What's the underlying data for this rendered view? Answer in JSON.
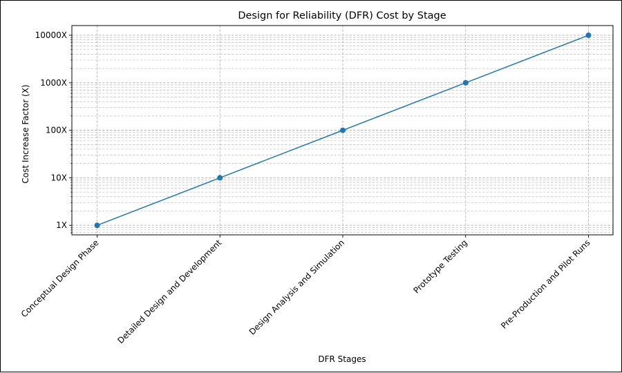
{
  "chart_data": {
    "type": "line",
    "title": "Design for Reliability (DFR) Cost by Stage",
    "xlabel": "DFR Stages",
    "ylabel": "Cost Increase Factor (X)",
    "categories": [
      "Conceptual Design Phase",
      "Detailed Design and Development",
      "Design Analysis and Simulation",
      "Prototype Testing",
      "Pre-Production and Pilot Runs"
    ],
    "series": [
      {
        "values": [
          1,
          10,
          100,
          1000,
          10000
        ],
        "color": "#1f77b4"
      }
    ],
    "yscale": "log",
    "ylim": [
      0.63,
      16000
    ],
    "yticks": [
      1,
      10,
      100,
      1000,
      10000
    ],
    "ytick_labels": [
      "1X",
      "10X",
      "100X",
      "1000X",
      "10000X"
    ],
    "grid": true,
    "grid_style": "dashed",
    "grid_color": "#b0b0b0",
    "line_color": "#1f77b4"
  }
}
